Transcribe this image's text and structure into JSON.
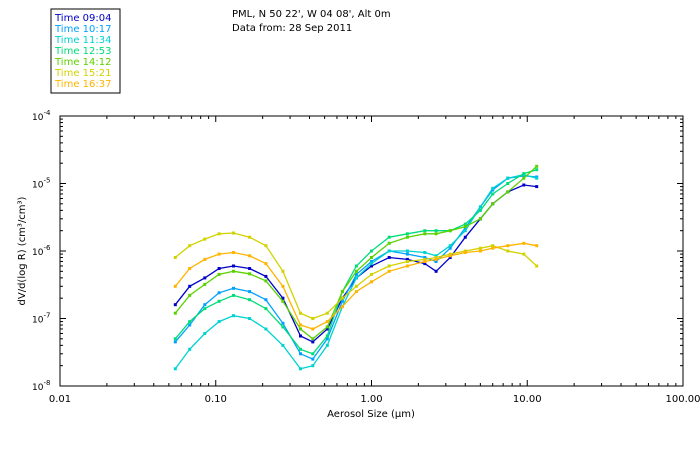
{
  "header": {
    "location": "PML, N 50 22', W 04 08', Alt 0m",
    "data_from": "Data from: 28 Sep 2011"
  },
  "chart_data": {
    "type": "line",
    "xscale": "log",
    "yscale": "log",
    "xlim": [
      0.01,
      100
    ],
    "ylim": [
      1e-08,
      0.0001
    ],
    "xlabel": "Aerosol Size (µm)",
    "ylabel": "dV/d(log R) (cm³/cm³)",
    "x_ticks": [
      "0.01",
      "0.10",
      "1.00",
      "10.00",
      "100.00"
    ],
    "y_ticks": [
      {
        "base": "10",
        "exp": "-4"
      },
      {
        "base": "10",
        "exp": "-5"
      },
      {
        "base": "10",
        "exp": "-6"
      },
      {
        "base": "10",
        "exp": "-7"
      },
      {
        "base": "10",
        "exp": "-8"
      }
    ],
    "x": [
      0.055,
      0.068,
      0.085,
      0.105,
      0.13,
      0.165,
      0.21,
      0.27,
      0.35,
      0.42,
      0.52,
      0.65,
      0.8,
      1.0,
      1.3,
      1.7,
      2.2,
      2.6,
      3.2,
      4.0,
      5.0,
      6.0,
      7.5,
      9.5,
      11.5
    ],
    "legend_position": "top-left",
    "series": [
      {
        "name": "Time 09:04",
        "color": "#0000c8",
        "values": [
          1.6e-07,
          3e-07,
          4e-07,
          5.5e-07,
          6e-07,
          5.5e-07,
          4.2e-07,
          2e-07,
          5.5e-08,
          4.5e-08,
          7e-08,
          2e-07,
          4e-07,
          6e-07,
          8e-07,
          7.5e-07,
          6.5e-07,
          5e-07,
          8e-07,
          1.6e-06,
          3e-06,
          5e-06,
          7.5e-06,
          9.5e-06,
          9e-06
        ]
      },
      {
        "name": "Time 10:17",
        "color": "#00a0ff",
        "values": [
          4.5e-08,
          8e-08,
          1.6e-07,
          2.4e-07,
          2.8e-07,
          2.5e-07,
          1.9e-07,
          8.5e-08,
          3e-08,
          2.5e-08,
          5e-08,
          1.8e-07,
          4.5e-07,
          7e-07,
          1e-06,
          9e-07,
          8e-07,
          7e-07,
          1.1e-06,
          2.2e-06,
          4.5e-06,
          8e-06,
          1.2e-05,
          1.3e-05,
          1.25e-05
        ]
      },
      {
        "name": "Time 11:34",
        "color": "#00d2d2",
        "values": [
          1.8e-08,
          3.5e-08,
          6e-08,
          9e-08,
          1.1e-07,
          1e-07,
          7e-08,
          4e-08,
          1.8e-08,
          2e-08,
          4e-08,
          1.5e-07,
          4e-07,
          6.5e-07,
          1e-06,
          1e-06,
          9.5e-07,
          8.5e-07,
          1.2e-06,
          2e-06,
          4.5e-06,
          8.5e-06,
          1.2e-05,
          1.35e-05,
          1.2e-05
        ]
      },
      {
        "name": "Time 12:53",
        "color": "#00dc78",
        "values": [
          5e-08,
          9e-08,
          1.4e-07,
          1.8e-07,
          2.2e-07,
          1.9e-07,
          1.4e-07,
          7.5e-08,
          3.5e-08,
          3e-08,
          5.5e-08,
          2.5e-07,
          6e-07,
          1e-06,
          1.6e-06,
          1.8e-06,
          2e-06,
          2e-06,
          2e-06,
          2.5e-06,
          4e-06,
          7e-06,
          1e-05,
          1.4e-05,
          1.6e-05
        ]
      },
      {
        "name": "Time 14:12",
        "color": "#5ad200",
        "values": [
          1.2e-07,
          2.2e-07,
          3.2e-07,
          4.5e-07,
          5e-07,
          4.6e-07,
          3.6e-07,
          1.8e-07,
          7e-08,
          5e-08,
          7.5e-08,
          2.5e-07,
          5e-07,
          8e-07,
          1.3e-06,
          1.6e-06,
          1.8e-06,
          1.8e-06,
          2e-06,
          2.3e-06,
          3e-06,
          5e-06,
          7.5e-06,
          1.2e-05,
          1.8e-05
        ]
      },
      {
        "name": "Time 15:21",
        "color": "#d2d200",
        "values": [
          8e-07,
          1.2e-06,
          1.5e-06,
          1.8e-06,
          1.85e-06,
          1.6e-06,
          1.2e-06,
          5e-07,
          1.2e-07,
          1e-07,
          1.2e-07,
          2e-07,
          3e-07,
          4.5e-07,
          6e-07,
          7e-07,
          7.5e-07,
          8e-07,
          9e-07,
          1e-06,
          1.1e-06,
          1.2e-06,
          1e-06,
          9e-07,
          6e-07
        ]
      },
      {
        "name": "Time 16:37",
        "color": "#ffb400",
        "values": [
          3e-07,
          5.5e-07,
          7.5e-07,
          9e-07,
          9.5e-07,
          8.5e-07,
          6.5e-07,
          3e-07,
          8e-08,
          7e-08,
          9e-08,
          1.5e-07,
          2.5e-07,
          3.5e-07,
          5e-07,
          6e-07,
          7e-07,
          7.5e-07,
          8.5e-07,
          9.5e-07,
          1e-06,
          1.1e-06,
          1.2e-06,
          1.3e-06,
          1.2e-06
        ]
      }
    ]
  }
}
